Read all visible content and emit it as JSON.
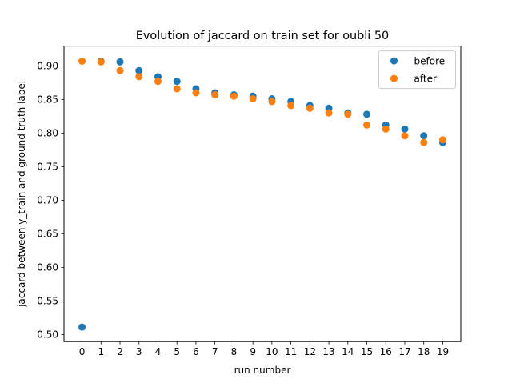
{
  "chart_data": {
    "type": "scatter",
    "title": "Evolution of jaccard on train set for oubli 50",
    "xlabel": "run number",
    "ylabel": "jaccard between y_train and ground truth label",
    "x": [
      0,
      1,
      2,
      3,
      4,
      5,
      6,
      7,
      8,
      9,
      10,
      11,
      12,
      13,
      14,
      15,
      16,
      17,
      18,
      19
    ],
    "xlim": [
      -0.95,
      19.95
    ],
    "ylim": [
      0.4895,
      0.9295
    ],
    "xticks": [
      0,
      1,
      2,
      3,
      4,
      5,
      6,
      7,
      8,
      9,
      10,
      11,
      12,
      13,
      14,
      15,
      16,
      17,
      18,
      19
    ],
    "yticks": [
      0.5,
      0.55,
      0.6,
      0.65,
      0.7,
      0.75,
      0.8,
      0.85,
      0.9
    ],
    "ytick_labels": [
      "0.50",
      "0.55",
      "0.60",
      "0.65",
      "0.70",
      "0.75",
      "0.80",
      "0.85",
      "0.90"
    ],
    "grid": false,
    "legend_position": "top-right",
    "series": [
      {
        "name": "before",
        "color": "#1f77b4",
        "values": [
          0.511,
          0.907,
          0.906,
          0.893,
          0.884,
          0.877,
          0.866,
          0.86,
          0.857,
          0.855,
          0.851,
          0.847,
          0.841,
          0.837,
          0.83,
          0.828,
          0.812,
          0.806,
          0.796,
          0.786
        ]
      },
      {
        "name": "after",
        "color": "#ff7f0e",
        "values": [
          0.907,
          0.906,
          0.893,
          0.884,
          0.877,
          0.866,
          0.86,
          0.857,
          0.855,
          0.851,
          0.847,
          0.841,
          0.837,
          0.83,
          0.828,
          0.812,
          0.806,
          0.796,
          0.786,
          0.79
        ]
      }
    ]
  }
}
